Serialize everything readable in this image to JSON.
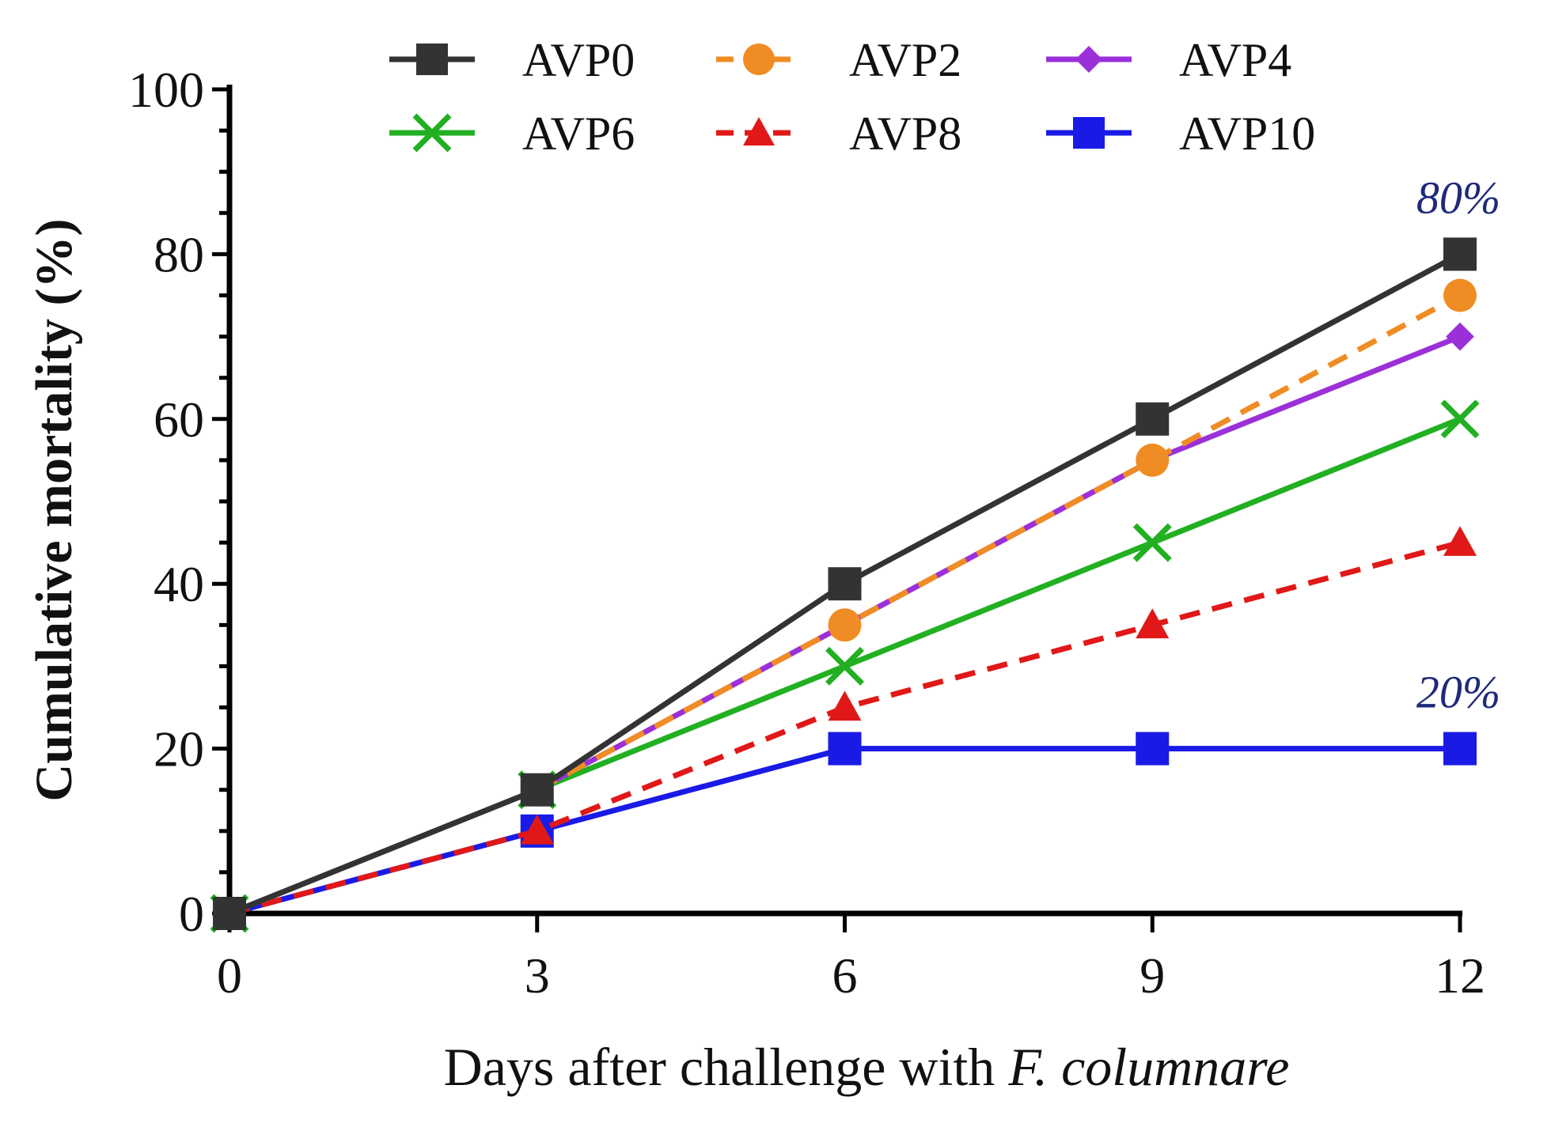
{
  "chart_data": {
    "type": "line",
    "title": "",
    "xlabel_prefix": "Days after challenge with ",
    "xlabel_italic": "F. columnare",
    "ylabel": "Cumulative mortality (%)",
    "x": [
      0,
      3,
      6,
      9,
      12
    ],
    "xlim": [
      0,
      12
    ],
    "ylim": [
      0,
      100
    ],
    "x_ticks": [
      "0",
      "3",
      "6",
      "9",
      "12"
    ],
    "y_ticks": [
      "0",
      "20",
      "40",
      "60",
      "80",
      "100"
    ],
    "legend_position": "top",
    "series": [
      {
        "name": "AVP0",
        "values": [
          0,
          15,
          40,
          60,
          80
        ],
        "color": "#333333",
        "marker": "square",
        "dashed": false
      },
      {
        "name": "AVP2",
        "values": [
          0,
          15,
          35,
          55,
          75
        ],
        "color": "#f08c24",
        "marker": "circle",
        "dashed": true
      },
      {
        "name": "AVP4",
        "values": [
          0,
          15,
          35,
          55,
          70
        ],
        "color": "#9b30d9",
        "marker": "diamond",
        "dashed": false
      },
      {
        "name": "AVP6",
        "values": [
          0,
          15,
          30,
          45,
          60
        ],
        "color": "#22b022",
        "marker": "x",
        "dashed": false
      },
      {
        "name": "AVP8",
        "values": [
          0,
          10,
          25,
          35,
          45
        ],
        "color": "#e01818",
        "marker": "triangle",
        "dashed": true
      },
      {
        "name": "AVP10",
        "values": [
          0,
          10,
          20,
          20,
          20
        ],
        "color": "#1a1ae6",
        "marker": "square",
        "dashed": false
      }
    ],
    "annotations": [
      {
        "text": "80%",
        "x": 12,
        "y": 80,
        "color": "#1f2a7a"
      },
      {
        "text": "20%",
        "x": 12,
        "y": 20,
        "color": "#1f2a7a"
      }
    ]
  }
}
